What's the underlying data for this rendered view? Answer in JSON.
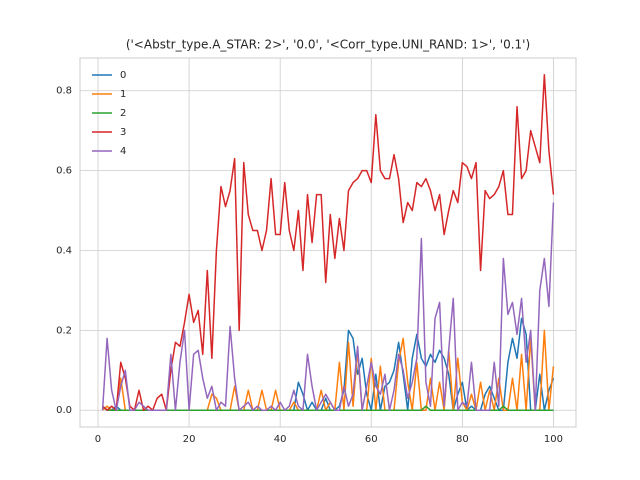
{
  "chart_data": {
    "type": "line",
    "title": "('<Abstr_type.A_STAR: 2>', '0.0', '<Corr_type.UNI_RAND: 1>', '0.1')",
    "x": [
      1,
      2,
      3,
      4,
      5,
      6,
      7,
      8,
      9,
      10,
      11,
      12,
      13,
      14,
      15,
      16,
      17,
      18,
      19,
      20,
      21,
      22,
      23,
      24,
      25,
      26,
      27,
      28,
      29,
      30,
      31,
      32,
      33,
      34,
      35,
      36,
      37,
      38,
      39,
      40,
      41,
      42,
      43,
      44,
      45,
      46,
      47,
      48,
      49,
      50,
      51,
      52,
      53,
      54,
      55,
      56,
      57,
      58,
      59,
      60,
      61,
      62,
      63,
      64,
      65,
      66,
      67,
      68,
      69,
      70,
      71,
      72,
      73,
      74,
      75,
      76,
      77,
      78,
      79,
      80,
      81,
      82,
      83,
      84,
      85,
      86,
      87,
      88,
      89,
      90,
      91,
      92,
      93,
      94,
      95,
      96,
      97,
      98,
      99,
      100
    ],
    "series": [
      {
        "name": "0",
        "color": "#1f77b4",
        "values": [
          0.01,
          0,
          0,
          0.01,
          0,
          0,
          0,
          0,
          0,
          0,
          0,
          0,
          0,
          0,
          0,
          0,
          0,
          0,
          0,
          0,
          0,
          0,
          0,
          0,
          0,
          0,
          0,
          0,
          0,
          0,
          0,
          0,
          0,
          0,
          0,
          0,
          0,
          0,
          0,
          0,
          0,
          0,
          0,
          0.07,
          0.04,
          0,
          0.02,
          0,
          0,
          0.03,
          0,
          0,
          0.01,
          0.05,
          0.2,
          0.18,
          0.09,
          0.13,
          0.04,
          0,
          0.09,
          0,
          0.06,
          0.07,
          0.1,
          0.17,
          0.09,
          0,
          0.13,
          0.19,
          0.13,
          0.11,
          0.14,
          0.12,
          0.15,
          0.13,
          0.09,
          0,
          0.04,
          0.07,
          0,
          0.01,
          0,
          0,
          0.04,
          0.06,
          0.03,
          0,
          0,
          0.12,
          0.18,
          0.13,
          0.23,
          0.19,
          0,
          0,
          0.09,
          0,
          0.05,
          0.08
        ]
      },
      {
        "name": "1",
        "color": "#ff7f0e",
        "values": [
          0,
          0.01,
          0,
          0,
          0.08,
          0,
          0,
          0,
          0,
          0,
          0,
          0,
          0,
          0,
          0,
          0,
          0,
          0,
          0,
          0,
          0,
          0,
          0,
          0,
          0.04,
          0.03,
          0,
          0,
          0,
          0.06,
          0,
          0,
          0.05,
          0,
          0,
          0.05,
          0,
          0,
          0.05,
          0,
          0,
          0,
          0.02,
          0,
          0,
          0,
          0,
          0,
          0.05,
          0,
          0.02,
          0,
          0.12,
          0,
          0.17,
          0.01,
          0.15,
          0,
          0,
          0.13,
          0,
          0.11,
          0,
          0,
          0,
          0.12,
          0.18,
          0.07,
          0,
          0.12,
          0,
          0,
          0.08,
          0,
          0.07,
          0,
          0.15,
          0,
          0.13,
          0.02,
          0,
          0.04,
          0,
          0.07,
          0,
          0.05,
          0,
          0.08,
          0,
          0,
          0.08,
          0,
          0.14,
          0,
          0.18,
          0,
          0,
          0.2,
          0,
          0.11
        ]
      },
      {
        "name": "2",
        "color": "#2ca02c",
        "values": [
          0.01,
          0,
          0,
          0,
          0,
          0,
          0,
          0,
          0,
          0,
          0,
          0,
          0,
          0,
          0,
          0,
          0,
          0,
          0,
          0,
          0,
          0,
          0,
          0,
          0,
          0,
          0,
          0,
          0,
          0,
          0,
          0,
          0,
          0,
          0,
          0,
          0,
          0,
          0,
          0,
          0,
          0,
          0,
          0,
          0,
          0,
          0,
          0,
          0,
          0,
          0,
          0,
          0,
          0,
          0,
          0,
          0,
          0,
          0,
          0,
          0,
          0,
          0,
          0,
          0,
          0,
          0,
          0,
          0,
          0,
          0,
          0.01,
          0,
          0,
          0,
          0,
          0,
          0,
          0,
          0,
          0,
          0,
          0,
          0,
          0,
          0,
          0,
          0,
          0.01,
          0,
          0,
          0,
          0,
          0,
          0,
          0,
          0,
          0,
          0,
          0
        ]
      },
      {
        "name": "3",
        "color": "#d62728",
        "values": [
          0.01,
          0,
          0.01,
          0,
          0.12,
          0.08,
          0.01,
          0,
          0.05,
          0,
          0.01,
          0,
          0.03,
          0.04,
          0,
          0.1,
          0.17,
          0.16,
          0.22,
          0.29,
          0.22,
          0.25,
          0.14,
          0.35,
          0.13,
          0.4,
          0.56,
          0.51,
          0.55,
          0.63,
          0.2,
          0.62,
          0.49,
          0.45,
          0.45,
          0.4,
          0.45,
          0.58,
          0.44,
          0.44,
          0.57,
          0.45,
          0.4,
          0.5,
          0.35,
          0.54,
          0.42,
          0.54,
          0.54,
          0.32,
          0.49,
          0.38,
          0.48,
          0.4,
          0.55,
          0.57,
          0.58,
          0.6,
          0.6,
          0.57,
          0.74,
          0.6,
          0.58,
          0.58,
          0.64,
          0.58,
          0.47,
          0.52,
          0.5,
          0.57,
          0.56,
          0.58,
          0.55,
          0.5,
          0.54,
          0.44,
          0.5,
          0.55,
          0.52,
          0.62,
          0.61,
          0.58,
          0.62,
          0.35,
          0.55,
          0.53,
          0.54,
          0.56,
          0.6,
          0.49,
          0.49,
          0.76,
          0.58,
          0.6,
          0.7,
          0.66,
          0.62,
          0.84,
          0.65,
          0.54
        ]
      },
      {
        "name": "4",
        "color": "#9467bd",
        "values": [
          0,
          0.18,
          0.05,
          0,
          0.06,
          0.1,
          0,
          0,
          0.02,
          0.01,
          0,
          0,
          0,
          0,
          0,
          0.14,
          0,
          0.12,
          0.2,
          0,
          0.14,
          0.15,
          0.08,
          0.03,
          0.06,
          0,
          0.02,
          0.01,
          0.21,
          0.08,
          0,
          0.01,
          0.02,
          0,
          0.01,
          0,
          0,
          0.01,
          0,
          0.02,
          0,
          0.01,
          0.05,
          0.01,
          0,
          0.14,
          0.06,
          0,
          0.02,
          0.04,
          0.02,
          0,
          0,
          0.06,
          0.01,
          0.04,
          0.16,
          0,
          0.06,
          0.12,
          0.06,
          0.04,
          0.09,
          0,
          0.05,
          0.14,
          0.1,
          0.03,
          0.07,
          0.13,
          0.43,
          0.07,
          0.01,
          0.23,
          0.27,
          0.01,
          0.15,
          0.28,
          0,
          0.02,
          0.01,
          0.12,
          0,
          0,
          0,
          0,
          0.12,
          0.01,
          0.38,
          0.24,
          0.27,
          0.19,
          0.28,
          0.12,
          0.2,
          0,
          0.3,
          0.38,
          0.26,
          0.52
        ]
      }
    ],
    "xlim": [
      -3.95,
      104.95
    ],
    "xticks": [
      0,
      20,
      40,
      60,
      80,
      100
    ],
    "ylim": [
      -0.042,
      0.882
    ],
    "yticks": [
      {
        "value": 0,
        "label": "0.0"
      },
      0.2,
      0.4,
      0.6,
      0.8
    ],
    "grid": true,
    "legend": "upper left"
  }
}
